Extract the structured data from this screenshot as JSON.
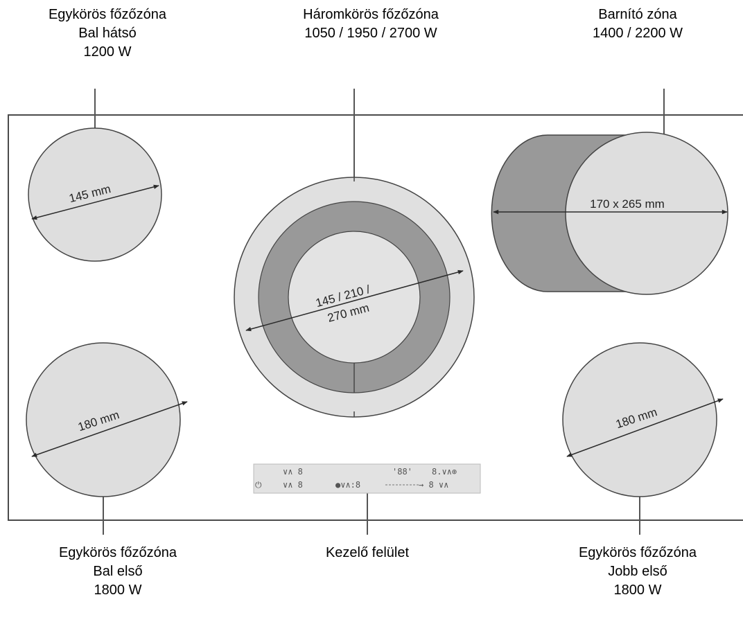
{
  "labels": {
    "top_left": {
      "line1": "Egykörös főzőzóna",
      "line2": "Bal hátsó",
      "line3": "1200 W"
    },
    "top_center": {
      "line1": "Háromkörös főzőzóna",
      "line2": "1050 / 1950 / 2700 W"
    },
    "top_right": {
      "line1": "Barnító zóna",
      "line2": "1400 / 2200 W"
    },
    "bottom_left": {
      "line1": "Egykörös főzőzóna",
      "line2": "Bal első",
      "line3": "1800 W"
    },
    "bottom_center": {
      "line1": "Kezelő felület"
    },
    "bottom_right": {
      "line1": "Egykörös főzőzóna",
      "line2": "Jobb első",
      "line3": "1800 W"
    }
  },
  "dimensions": {
    "rear_left": "145 mm",
    "center_line1": "145 / 210 /",
    "center_line2": "270 mm",
    "rear_right": "170 x 265 mm",
    "front_left": "180 mm",
    "front_right": "180 mm"
  },
  "control_panel": {
    "row1_left": "∨∧ 8",
    "row1_mid": "'88'",
    "row1_right": "8.∨∧⊕",
    "row2_power": "⏻",
    "row2_a": "∨∧ 8",
    "row2_b": "●∨∧:8",
    "row2_c": "→ 8 ∨∧"
  },
  "colors": {
    "zone_fill": "#dedede",
    "zone_dark": "#999999",
    "hob_border": "#4a4a4a",
    "leader_line": "#555555",
    "control_panel_fill": "#e2e2e2"
  }
}
